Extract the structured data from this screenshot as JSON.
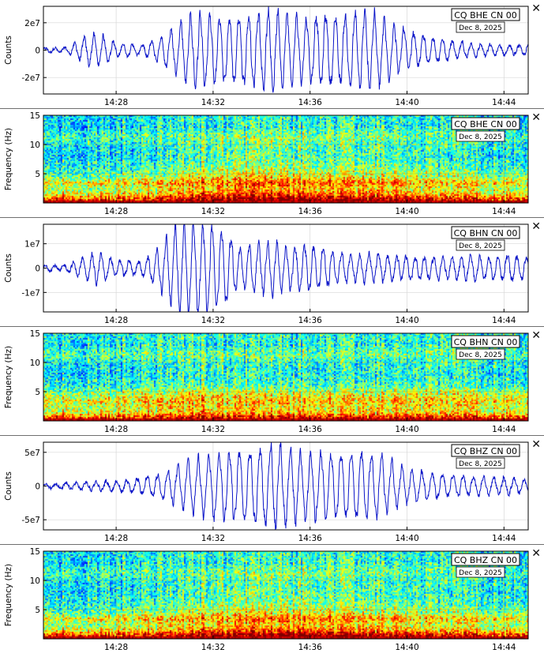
{
  "colors": {
    "trace": "#0a14c8",
    "axes": "#000000",
    "grid": "#d7d7d7"
  },
  "x_ticks": [
    "14:28",
    "14:32",
    "14:36",
    "14:40",
    "14:44"
  ],
  "close_symbol": "✕",
  "chart_data": [
    {
      "type": "line",
      "id": "bhe-wave",
      "station_label": "CQ BHE CN 00",
      "date_label": "Dec 8, 2025",
      "ylabel": "Counts",
      "ytick_labels": [
        "2e7",
        "0",
        "-2e7"
      ],
      "ytick_values": [
        20000000,
        0,
        -20000000
      ],
      "ylim": [
        -32000000,
        32000000
      ],
      "xlim_minutes": [
        25.0,
        45.0
      ],
      "amplitude_max": 28000000,
      "envelope": [
        [
          25.0,
          0.05
        ],
        [
          26.0,
          0.07
        ],
        [
          26.8,
          0.35
        ],
        [
          27.3,
          0.4
        ],
        [
          28.0,
          0.18
        ],
        [
          29.0,
          0.12
        ],
        [
          29.6,
          0.25
        ],
        [
          30.3,
          0.5
        ],
        [
          31.0,
          0.85
        ],
        [
          31.6,
          0.92
        ],
        [
          32.4,
          0.8
        ],
        [
          33.2,
          0.85
        ],
        [
          34.0,
          0.93
        ],
        [
          34.5,
          1.0
        ],
        [
          35.0,
          0.95
        ],
        [
          35.8,
          0.75
        ],
        [
          36.5,
          0.9
        ],
        [
          37.3,
          0.85
        ],
        [
          38.0,
          0.95
        ],
        [
          38.7,
          0.9
        ],
        [
          39.4,
          0.65
        ],
        [
          40.2,
          0.45
        ],
        [
          41.0,
          0.32
        ],
        [
          42.0,
          0.22
        ],
        [
          43.0,
          0.15
        ],
        [
          44.0,
          0.12
        ],
        [
          45.0,
          0.12
        ]
      ],
      "period_minutes": 0.4
    },
    {
      "type": "heatmap",
      "id": "bhe-spec",
      "station_label": "CQ BHE CN 00",
      "date_label": "Dec 8, 2025",
      "ylabel": "Frequency (Hz)",
      "ytick_labels": [
        "15",
        "10",
        "5"
      ],
      "ytick_values": [
        15,
        10,
        5
      ],
      "ylim": [
        0,
        15
      ],
      "xlim_minutes": [
        25.0,
        45.0
      ],
      "color_scale": "jet",
      "activity": [
        [
          25.0,
          0.2
        ],
        [
          26.5,
          0.25
        ],
        [
          28.0,
          0.25
        ],
        [
          29.5,
          0.3
        ],
        [
          30.5,
          0.55
        ],
        [
          32.0,
          0.8
        ],
        [
          34.0,
          0.9
        ],
        [
          35.5,
          0.75
        ],
        [
          37.0,
          0.7
        ],
        [
          39.0,
          0.65
        ],
        [
          40.5,
          0.4
        ],
        [
          42.5,
          0.3
        ],
        [
          45.0,
          0.25
        ]
      ],
      "band_strength": [
        [
          0.0,
          1.0
        ],
        [
          0.7,
          0.85
        ],
        [
          1.5,
          0.55
        ],
        [
          2.5,
          0.35
        ],
        [
          3.5,
          0.55
        ],
        [
          4.5,
          0.3
        ],
        [
          6.0,
          0.15
        ],
        [
          8.0,
          0.05
        ],
        [
          10.0,
          0.12
        ],
        [
          11.5,
          0.22
        ],
        [
          13.0,
          0.08
        ],
        [
          15.0,
          0.1
        ]
      ]
    },
    {
      "type": "line",
      "id": "bhn-wave",
      "station_label": "CQ BHN CN 00",
      "date_label": "Dec 8, 2025",
      "ylabel": "Counts",
      "ytick_labels": [
        "1e7",
        "0",
        "-1e7"
      ],
      "ytick_values": [
        10000000,
        0,
        -10000000
      ],
      "ylim": [
        -18000000,
        18000000
      ],
      "xlim_minutes": [
        25.0,
        45.0
      ],
      "amplitude_max": 17500000,
      "envelope": [
        [
          25.0,
          0.05
        ],
        [
          26.0,
          0.07
        ],
        [
          26.5,
          0.2
        ],
        [
          27.2,
          0.35
        ],
        [
          28.0,
          0.18
        ],
        [
          29.0,
          0.15
        ],
        [
          29.6,
          0.35
        ],
        [
          30.0,
          0.65
        ],
        [
          30.6,
          1.0
        ],
        [
          31.2,
          1.0
        ],
        [
          31.8,
          0.95
        ],
        [
          32.5,
          0.85
        ],
        [
          33.0,
          0.45
        ],
        [
          33.8,
          0.55
        ],
        [
          34.5,
          0.6
        ],
        [
          35.2,
          0.45
        ],
        [
          35.8,
          0.55
        ],
        [
          36.5,
          0.45
        ],
        [
          37.5,
          0.3
        ],
        [
          38.5,
          0.32
        ],
        [
          39.5,
          0.28
        ],
        [
          40.5,
          0.25
        ],
        [
          41.5,
          0.25
        ],
        [
          42.5,
          0.28
        ],
        [
          43.5,
          0.25
        ],
        [
          44.2,
          0.3
        ],
        [
          45.0,
          0.22
        ]
      ],
      "period_minutes": 0.38
    },
    {
      "type": "heatmap",
      "id": "bhn-spec",
      "station_label": "CQ BHN CN 00",
      "date_label": "Dec 8, 2025",
      "ylabel": "Frequency (Hz)",
      "ytick_labels": [
        "15",
        "10",
        "5"
      ],
      "ytick_values": [
        15,
        10,
        5
      ],
      "ylim": [
        0,
        15
      ],
      "xlim_minutes": [
        25.0,
        45.0
      ],
      "color_scale": "jet",
      "activity": [
        [
          25.0,
          0.25
        ],
        [
          27.0,
          0.3
        ],
        [
          28.5,
          0.3
        ],
        [
          30.0,
          0.45
        ],
        [
          31.5,
          0.65
        ],
        [
          33.0,
          0.55
        ],
        [
          35.0,
          0.5
        ],
        [
          37.0,
          0.45
        ],
        [
          39.0,
          0.45
        ],
        [
          41.0,
          0.4
        ],
        [
          43.0,
          0.35
        ],
        [
          45.0,
          0.3
        ]
      ],
      "band_strength": [
        [
          0.0,
          1.0
        ],
        [
          0.7,
          0.8
        ],
        [
          1.5,
          0.45
        ],
        [
          2.5,
          0.4
        ],
        [
          3.5,
          0.5
        ],
        [
          4.8,
          0.35
        ],
        [
          6.0,
          0.12
        ],
        [
          8.0,
          0.04
        ],
        [
          10.0,
          0.1
        ],
        [
          11.5,
          0.25
        ],
        [
          13.0,
          0.12
        ],
        [
          15.0,
          0.15
        ]
      ]
    },
    {
      "type": "line",
      "id": "bhz-wave",
      "station_label": "CQ BHZ CN 00",
      "date_label": "Dec 8, 2025",
      "ylabel": "Counts",
      "ytick_labels": [
        "5e7",
        "0",
        "-5e7"
      ],
      "ytick_values": [
        50000000,
        0,
        -50000000
      ],
      "ylim": [
        -65000000,
        65000000
      ],
      "xlim_minutes": [
        25.0,
        45.0
      ],
      "amplitude_max": 60000000,
      "envelope": [
        [
          25.0,
          0.05
        ],
        [
          26.0,
          0.07
        ],
        [
          27.0,
          0.1
        ],
        [
          28.0,
          0.12
        ],
        [
          29.0,
          0.18
        ],
        [
          30.0,
          0.3
        ],
        [
          31.0,
          0.6
        ],
        [
          31.8,
          0.75
        ],
        [
          32.5,
          0.8
        ],
        [
          33.5,
          0.85
        ],
        [
          34.3,
          0.95
        ],
        [
          34.7,
          1.0
        ],
        [
          35.2,
          0.85
        ],
        [
          36.0,
          0.8
        ],
        [
          37.0,
          0.75
        ],
        [
          38.0,
          0.8
        ],
        [
          39.0,
          0.7
        ],
        [
          40.0,
          0.4
        ],
        [
          41.0,
          0.3
        ],
        [
          42.0,
          0.25
        ],
        [
          43.0,
          0.22
        ],
        [
          44.0,
          0.2
        ],
        [
          45.0,
          0.15
        ]
      ],
      "period_minutes": 0.42
    },
    {
      "type": "heatmap",
      "id": "bhz-spec",
      "station_label": "CQ BHZ CN 00",
      "date_label": "Dec 8, 2025",
      "ylabel": "Frequency (Hz)",
      "ytick_labels": [
        "15",
        "10",
        "5"
      ],
      "ytick_values": [
        15,
        10,
        5
      ],
      "ylim": [
        0,
        15
      ],
      "xlim_minutes": [
        25.0,
        45.0
      ],
      "color_scale": "jet",
      "activity": [
        [
          25.0,
          0.25
        ],
        [
          27.0,
          0.3
        ],
        [
          29.0,
          0.35
        ],
        [
          30.5,
          0.55
        ],
        [
          32.0,
          0.8
        ],
        [
          34.0,
          0.85
        ],
        [
          36.0,
          0.8
        ],
        [
          38.0,
          0.7
        ],
        [
          39.5,
          0.55
        ],
        [
          41.0,
          0.4
        ],
        [
          43.0,
          0.35
        ],
        [
          45.0,
          0.3
        ]
      ],
      "band_strength": [
        [
          0.0,
          1.0
        ],
        [
          0.7,
          0.85
        ],
        [
          1.5,
          0.5
        ],
        [
          2.5,
          0.3
        ],
        [
          3.5,
          0.5
        ],
        [
          4.5,
          0.25
        ],
        [
          6.0,
          0.12
        ],
        [
          8.0,
          0.06
        ],
        [
          10.0,
          0.1
        ],
        [
          11.5,
          0.2
        ],
        [
          13.0,
          0.1
        ],
        [
          15.0,
          0.12
        ]
      ]
    }
  ]
}
